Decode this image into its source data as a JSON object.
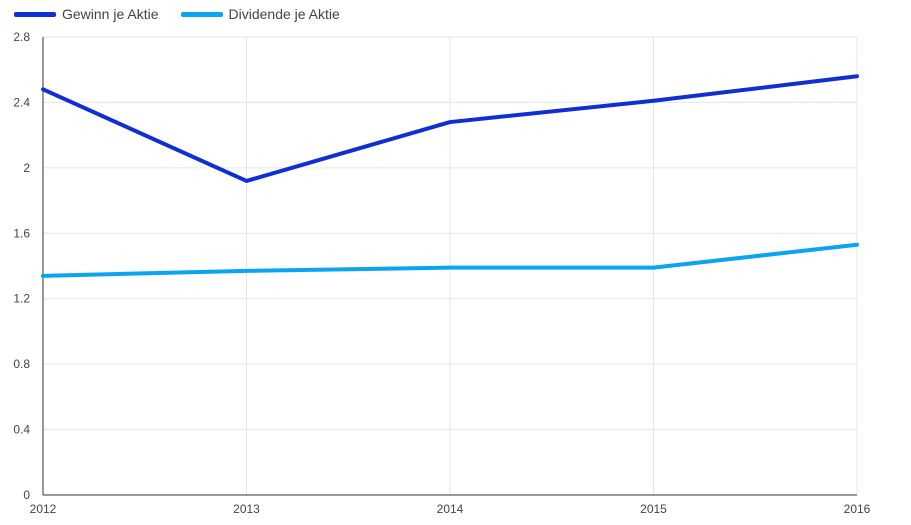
{
  "chart_data": {
    "type": "line",
    "categories": [
      "2012",
      "2013",
      "2014",
      "2015",
      "2016"
    ],
    "series": [
      {
        "name": "Gewinn je Aktie",
        "values": [
          2.48,
          1.92,
          2.28,
          2.41,
          2.56
        ],
        "color": "#0d2fd3"
      },
      {
        "name": "Dividende je Aktie",
        "values": [
          1.34,
          1.37,
          1.39,
          1.39,
          1.53
        ],
        "color": "#0aa4f0"
      }
    ],
    "y_ticks": [
      "0",
      "0.4",
      "0.8",
      "1.2",
      "1.6",
      "2",
      "2.4",
      "2.8"
    ],
    "ylim": [
      0,
      2.8
    ],
    "grid": true,
    "legend_position": "top-left",
    "gridline_color": "#e6e6e6",
    "axis_color": "#333333"
  }
}
